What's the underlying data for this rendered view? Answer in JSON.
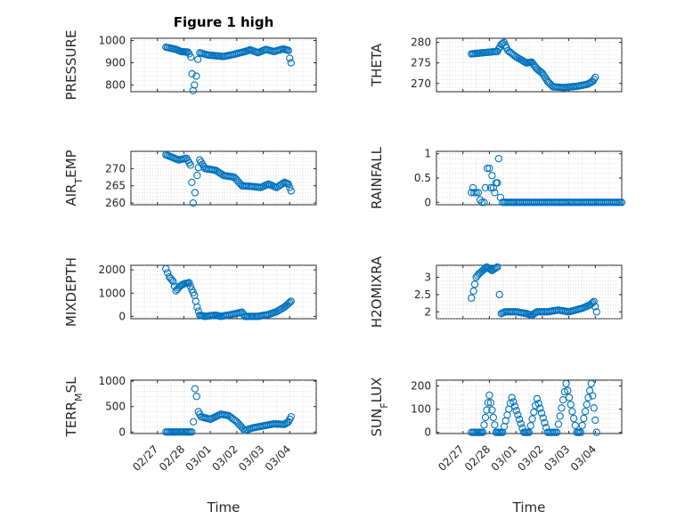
{
  "figure": {
    "title": "Figure 1 high",
    "xlabel": "Time"
  },
  "colors": {
    "marker": "#0072bd",
    "axis": "#262626",
    "grid": "#c9c9c9"
  },
  "x_ticks": [
    "02/27",
    "02/28",
    "03/01",
    "03/02",
    "03/03",
    "03/04"
  ],
  "chart_data": [
    {
      "type": "scatter",
      "title": "Figure 1 high",
      "ylabel": "PRESSURE",
      "ylabel_parts": [
        {
          "t": "PRESSURE",
          "s": ""
        }
      ],
      "xlim": [
        0,
        7
      ],
      "ylim": [
        770,
        1010
      ],
      "yticks": [
        800,
        900,
        1000
      ],
      "yticklabels": [
        "800",
        "900",
        "1000"
      ],
      "series": [
        {
          "name": "PRESSURE",
          "keypoints": [
            [
              1.32,
              970
            ],
            [
              1.7,
              960
            ],
            [
              1.9,
              950
            ],
            [
              2.15,
              948
            ],
            [
              2.2,
              940
            ],
            [
              2.27,
              925
            ],
            [
              2.31,
              850
            ],
            [
              2.35,
              775
            ],
            [
              2.4,
              800
            ],
            [
              2.47,
              840
            ],
            [
              2.53,
              915
            ],
            [
              2.6,
              945
            ],
            [
              2.9,
              935
            ],
            [
              3.5,
              928
            ],
            [
              3.9,
              938
            ],
            [
              4.3,
              950
            ],
            [
              4.5,
              958
            ],
            [
              4.8,
              945
            ],
            [
              5.1,
              960
            ],
            [
              5.4,
              950
            ],
            [
              5.75,
              962
            ],
            [
              5.95,
              955
            ],
            [
              6.0,
              920
            ],
            [
              6.05,
              900
            ]
          ]
        }
      ]
    },
    {
      "type": "scatter",
      "title": "",
      "ylabel": "THETA",
      "ylabel_parts": [
        {
          "t": "THETA",
          "s": ""
        }
      ],
      "xlim": [
        0,
        7
      ],
      "ylim": [
        268,
        281
      ],
      "yticks": [
        270,
        275,
        280
      ],
      "yticklabels": [
        "270",
        "275",
        "280"
      ],
      "series": [
        {
          "name": "THETA",
          "keypoints": [
            [
              1.32,
              277.2
            ],
            [
              1.8,
              277.5
            ],
            [
              2.3,
              277.8
            ],
            [
              2.45,
              279.5
            ],
            [
              2.55,
              280
            ],
            [
              2.7,
              278
            ],
            [
              3.0,
              276.5
            ],
            [
              3.4,
              275
            ],
            [
              3.6,
              275.2
            ],
            [
              3.8,
              273.5
            ],
            [
              4.0,
              272.5
            ],
            [
              4.2,
              270.5
            ],
            [
              4.4,
              269.2
            ],
            [
              4.8,
              269
            ],
            [
              5.3,
              269.3
            ],
            [
              5.7,
              269.8
            ],
            [
              5.9,
              270.5
            ],
            [
              6.0,
              271.5
            ]
          ]
        }
      ]
    },
    {
      "type": "scatter",
      "title": "",
      "ylabel": "AIR_TEMP",
      "ylabel_parts": [
        {
          "t": "AIR",
          "s": ""
        },
        {
          "t": "T",
          "s": "sub"
        },
        {
          "t": "EMP",
          "s": ""
        }
      ],
      "xlim": [
        0,
        7
      ],
      "ylim": [
        259.5,
        275
      ],
      "yticks": [
        260,
        265,
        270
      ],
      "yticklabels": [
        "260",
        "265",
        "270"
      ],
      "series": [
        {
          "name": "AIR_TEMP",
          "keypoints": [
            [
              1.32,
              274
            ],
            [
              1.8,
              272.5
            ],
            [
              2.1,
              273
            ],
            [
              2.25,
              271
            ],
            [
              2.3,
              266
            ],
            [
              2.35,
              260
            ],
            [
              2.42,
              263
            ],
            [
              2.5,
              268
            ],
            [
              2.6,
              272.5
            ],
            [
              2.8,
              270
            ],
            [
              3.2,
              269.5
            ],
            [
              3.5,
              268
            ],
            [
              3.9,
              267.5
            ],
            [
              4.2,
              265
            ],
            [
              4.6,
              264.8
            ],
            [
              4.9,
              264.5
            ],
            [
              5.2,
              265.5
            ],
            [
              5.5,
              264.5
            ],
            [
              5.8,
              266
            ],
            [
              5.95,
              265.5
            ],
            [
              6.05,
              263.5
            ]
          ]
        }
      ]
    },
    {
      "type": "scatter",
      "title": "",
      "ylabel": "RAINFALL",
      "ylabel_parts": [
        {
          "t": "RAINFALL",
          "s": ""
        }
      ],
      "xlim": [
        0,
        7
      ],
      "ylim": [
        -0.05,
        1.05
      ],
      "yticks": [
        0,
        0.5,
        1
      ],
      "yticklabels": [
        "0",
        "0.5",
        "1"
      ],
      "series": [
        {
          "name": "RAINFALL",
          "points": [
            [
              1.32,
              0.2
            ],
            [
              1.38,
              0.3
            ],
            [
              1.42,
              0.2
            ],
            [
              1.5,
              0.2
            ],
            [
              1.58,
              0.2
            ],
            [
              1.65,
              0.05
            ],
            [
              1.72,
              0
            ],
            [
              1.8,
              0
            ],
            [
              1.85,
              0.3
            ],
            [
              1.92,
              0.7
            ],
            [
              2.0,
              0.7
            ],
            [
              2.05,
              0.3
            ],
            [
              2.1,
              0.55
            ],
            [
              2.15,
              0.3
            ],
            [
              2.2,
              0.2
            ],
            [
              2.25,
              0.4
            ],
            [
              2.3,
              0.4
            ],
            [
              2.35,
              0.9
            ],
            [
              2.42,
              0.1
            ]
          ],
          "flat": {
            "from": 2.5,
            "to": 7.0,
            "value": 0,
            "step": 0.06
          }
        }
      ]
    },
    {
      "type": "scatter",
      "title": "",
      "ylabel": "MIXDEPTH",
      "ylabel_parts": [
        {
          "t": "MIXDEPTH",
          "s": ""
        }
      ],
      "xlim": [
        0,
        7
      ],
      "ylim": [
        -100,
        2200
      ],
      "yticks": [
        0,
        1000,
        2000
      ],
      "yticklabels": [
        "0",
        "1000",
        "2000"
      ],
      "series": [
        {
          "name": "MIXDEPTH",
          "keypoints": [
            [
              1.32,
              2050
            ],
            [
              1.45,
              1700
            ],
            [
              1.6,
              1500
            ],
            [
              1.7,
              1100
            ],
            [
              1.85,
              1300
            ],
            [
              2.0,
              1400
            ],
            [
              2.2,
              1450
            ],
            [
              2.3,
              1150
            ],
            [
              2.4,
              900
            ],
            [
              2.5,
              400
            ],
            [
              2.6,
              50
            ],
            [
              2.8,
              0
            ],
            [
              3.2,
              50
            ],
            [
              3.4,
              0
            ],
            [
              3.8,
              80
            ],
            [
              4.2,
              180
            ],
            [
              4.3,
              0
            ],
            [
              4.8,
              0
            ],
            [
              5.2,
              80
            ],
            [
              5.5,
              200
            ],
            [
              5.8,
              400
            ],
            [
              6.05,
              650
            ]
          ]
        }
      ]
    },
    {
      "type": "scatter",
      "title": "",
      "ylabel": "H2OMIXRA",
      "ylabel_parts": [
        {
          "t": "H2OMIXRA",
          "s": ""
        }
      ],
      "xlim": [
        0,
        7
      ],
      "ylim": [
        1.8,
        3.35
      ],
      "yticks": [
        2,
        2.5,
        3
      ],
      "yticklabels": [
        "2",
        "2.5",
        "3"
      ],
      "series": [
        {
          "name": "H2OMIXRA",
          "keypoints": [
            [
              1.32,
              2.4
            ],
            [
              1.4,
              2.6
            ],
            [
              1.5,
              3.0
            ],
            [
              1.6,
              3.1
            ],
            [
              1.75,
              3.2
            ],
            [
              1.9,
              3.3
            ],
            [
              2.1,
              3.2
            ],
            [
              2.3,
              3.3
            ],
            [
              2.38,
              2.5
            ],
            [
              2.45,
              1.95
            ],
            [
              2.6,
              2.0
            ],
            [
              3.0,
              2.0
            ],
            [
              3.4,
              1.95
            ],
            [
              3.6,
              1.9
            ],
            [
              3.8,
              2.0
            ],
            [
              4.2,
              2.0
            ],
            [
              4.6,
              2.05
            ],
            [
              5.0,
              2.0
            ],
            [
              5.5,
              2.1
            ],
            [
              5.8,
              2.2
            ],
            [
              5.95,
              2.3
            ],
            [
              6.05,
              2.0
            ]
          ]
        }
      ]
    },
    {
      "type": "scatter",
      "title": "",
      "ylabel": "TERR_MSL",
      "ylabel_parts": [
        {
          "t": "TERR",
          "s": ""
        },
        {
          "t": "M",
          "s": "sub"
        },
        {
          "t": "SL",
          "s": ""
        }
      ],
      "xlim": [
        0,
        7
      ],
      "ylim": [
        -30,
        1020
      ],
      "yticks": [
        0,
        500,
        1000
      ],
      "yticklabels": [
        "0",
        "500",
        "1000"
      ],
      "series": [
        {
          "name": "TERR_MSL",
          "keypoints": [
            [
              1.32,
              0
            ],
            [
              2.3,
              0
            ],
            [
              2.36,
              200
            ],
            [
              2.42,
              850
            ],
            [
              2.48,
              700
            ],
            [
              2.55,
              400
            ],
            [
              2.65,
              300
            ],
            [
              3.0,
              250
            ],
            [
              3.4,
              350
            ],
            [
              3.7,
              320
            ],
            [
              4.0,
              200
            ],
            [
              4.3,
              30
            ],
            [
              4.6,
              80
            ],
            [
              5.0,
              120
            ],
            [
              5.4,
              160
            ],
            [
              5.8,
              150
            ],
            [
              5.95,
              200
            ],
            [
              6.05,
              300
            ]
          ]
        }
      ]
    },
    {
      "type": "scatter",
      "title": "",
      "ylabel": "SUN_FLUX",
      "ylabel_parts": [
        {
          "t": "SUN",
          "s": ""
        },
        {
          "t": "F",
          "s": "sub"
        },
        {
          "t": "LUX",
          "s": ""
        }
      ],
      "xlim": [
        0,
        7
      ],
      "ylim": [
        -5,
        225
      ],
      "yticks": [
        0,
        100,
        200
      ],
      "yticklabels": [
        "0",
        "100",
        "200"
      ],
      "series": [
        {
          "name": "SUN_FLUX",
          "keypoints": [
            [
              1.32,
              0
            ],
            [
              1.55,
              0
            ],
            [
              1.75,
              0
            ],
            [
              2.0,
              160
            ],
            [
              2.25,
              0
            ],
            [
              2.5,
              0
            ],
            [
              2.85,
              150
            ],
            [
              3.3,
              0
            ],
            [
              3.5,
              0
            ],
            [
              3.8,
              145
            ],
            [
              4.2,
              0
            ],
            [
              4.55,
              0
            ],
            [
              4.9,
              210
            ],
            [
              5.3,
              0
            ],
            [
              5.45,
              0
            ],
            [
              5.85,
              210
            ],
            [
              6.05,
              0
            ]
          ]
        }
      ]
    }
  ]
}
